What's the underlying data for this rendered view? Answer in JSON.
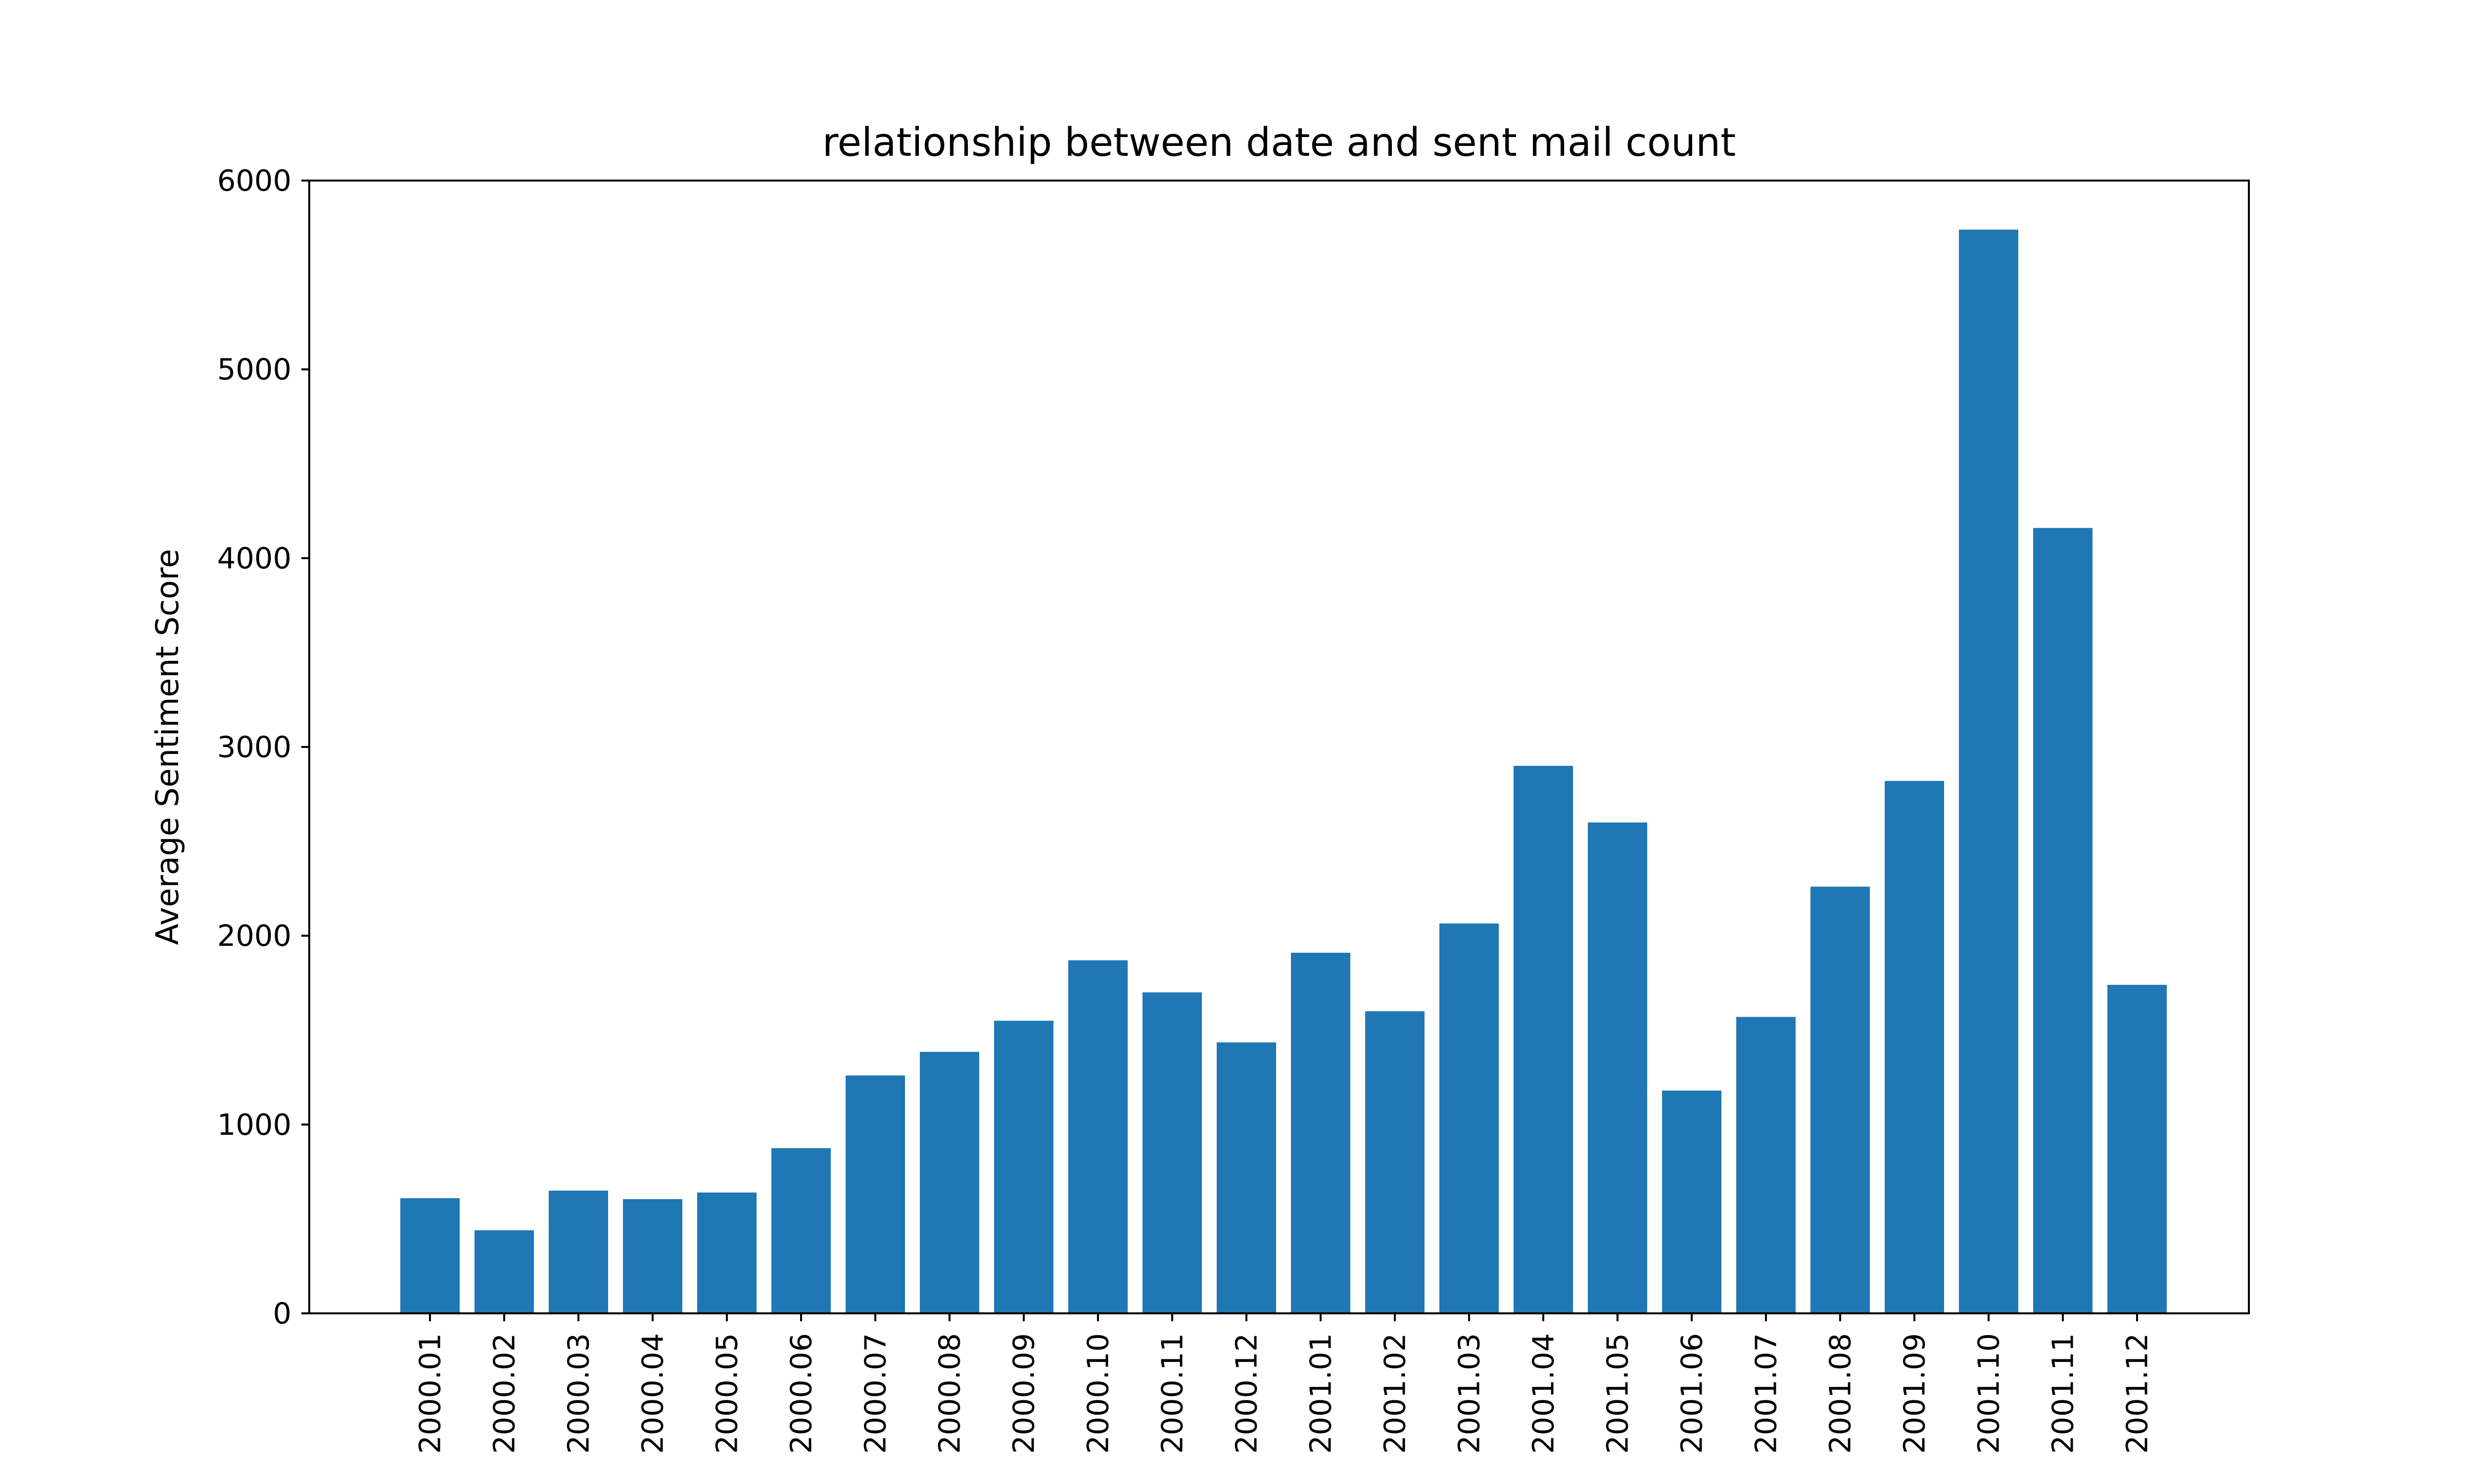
{
  "chart_data": {
    "type": "bar",
    "title": "relationship between date and sent mail count",
    "xlabel": "",
    "ylabel": "Average Sentiment Score",
    "categories": [
      "2000.01",
      "2000.02",
      "2000.03",
      "2000.04",
      "2000.05",
      "2000.06",
      "2000.07",
      "2000.08",
      "2000.09",
      "2000.10",
      "2000.11",
      "2000.12",
      "2001.01",
      "2001.02",
      "2001.03",
      "2001.04",
      "2001.05",
      "2001.06",
      "2001.07",
      "2001.08",
      "2001.09",
      "2001.10",
      "2001.11",
      "2001.12"
    ],
    "values": [
      610,
      440,
      650,
      605,
      640,
      875,
      1260,
      1385,
      1550,
      1870,
      1700,
      1435,
      1910,
      1600,
      2065,
      2900,
      2600,
      1180,
      1570,
      2260,
      2820,
      5740,
      4160,
      1740
    ],
    "ylim": [
      0,
      6000
    ],
    "yticks": [
      0,
      1000,
      2000,
      3000,
      4000,
      5000,
      6000
    ],
    "bar_color": "#1f77b4",
    "grid": false,
    "legend": "none"
  }
}
